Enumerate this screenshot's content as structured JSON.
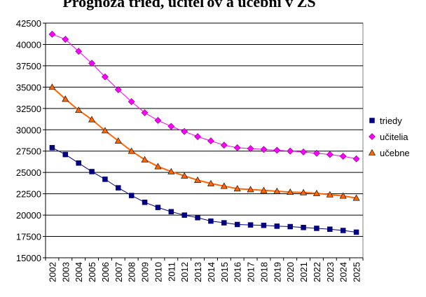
{
  "chart_data": {
    "type": "line",
    "title": "Prognóza tried, učiteľov a učební v ZŠ",
    "xlabel": "",
    "ylabel": "",
    "ylim": [
      15000,
      42500
    ],
    "yticks": [
      15000,
      17500,
      20000,
      22500,
      25000,
      27500,
      30000,
      32500,
      35000,
      37500,
      40000,
      42500
    ],
    "grid": "horizontal",
    "legend_position": "right",
    "categories": [
      "2002",
      "2003",
      "2004",
      "2005",
      "2006",
      "2007",
      "2008",
      "2009",
      "2010",
      "2011",
      "2012",
      "2013",
      "2014",
      "2015",
      "2016",
      "2017",
      "2018",
      "2019",
      "2020",
      "2021",
      "2022",
      "2023",
      "2024",
      "2025"
    ],
    "series": [
      {
        "name": "triedy",
        "color": "#000080",
        "marker": "square",
        "values": [
          27900,
          27100,
          26100,
          25100,
          24200,
          23200,
          22300,
          21500,
          20900,
          20400,
          20000,
          19700,
          19300,
          19100,
          18900,
          18850,
          18800,
          18700,
          18650,
          18550,
          18450,
          18350,
          18200,
          18000
        ]
      },
      {
        "name": "učitelia",
        "color": "#ff00ff",
        "marker": "diamond",
        "values": [
          41200,
          40600,
          39200,
          37800,
          36200,
          34700,
          33300,
          32000,
          31100,
          30400,
          29800,
          29200,
          28700,
          28200,
          27900,
          27800,
          27700,
          27600,
          27500,
          27400,
          27250,
          27100,
          26900,
          26600
        ]
      },
      {
        "name": "učebne",
        "color": "#ff6600",
        "marker": "triangle",
        "values": [
          35000,
          33600,
          32300,
          31200,
          29900,
          28700,
          27500,
          26500,
          25700,
          25100,
          24600,
          24100,
          23700,
          23400,
          23100,
          23000,
          22900,
          22800,
          22700,
          22650,
          22550,
          22400,
          22250,
          22000
        ]
      }
    ]
  }
}
